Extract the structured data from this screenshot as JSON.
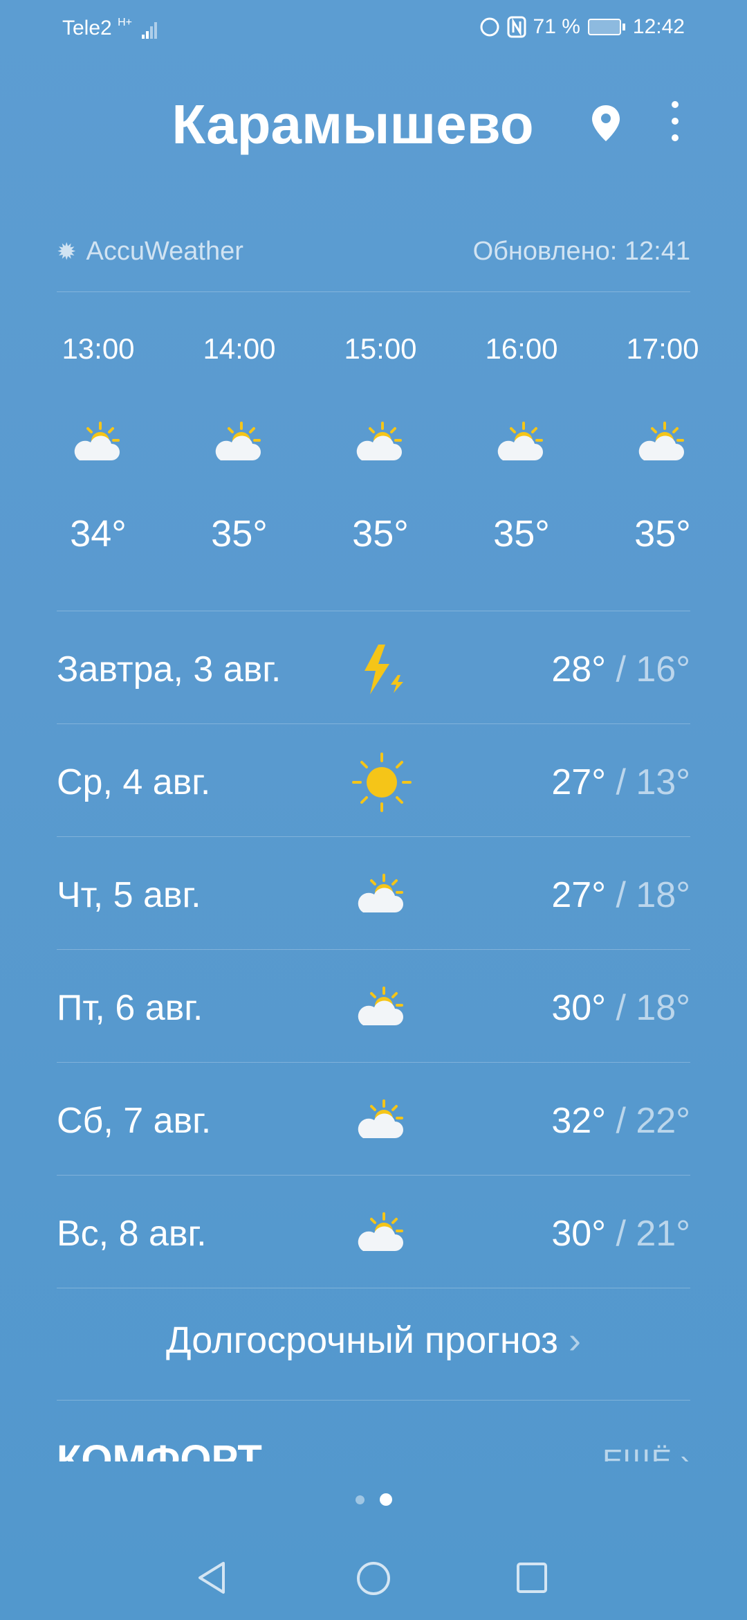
{
  "status": {
    "carrier": "Tele2",
    "network": "H+",
    "battery": "71 %",
    "time": "12:42"
  },
  "header": {
    "city": "Карамышево"
  },
  "source": {
    "provider": "AccuWeather",
    "updated": "Обновлено: 12:41"
  },
  "hourly": [
    {
      "time": "13:00",
      "icon": "partly-sunny",
      "temp": "34°"
    },
    {
      "time": "14:00",
      "icon": "partly-sunny",
      "temp": "35°"
    },
    {
      "time": "15:00",
      "icon": "partly-sunny",
      "temp": "35°"
    },
    {
      "time": "16:00",
      "icon": "partly-sunny",
      "temp": "35°"
    },
    {
      "time": "17:00",
      "icon": "partly-sunny",
      "temp": "35°"
    }
  ],
  "daily": [
    {
      "day": "Завтра, 3 авг.",
      "icon": "thunder",
      "high": "28°",
      "low": "/ 16°"
    },
    {
      "day": "Ср, 4 авг.",
      "icon": "sunny",
      "high": "27°",
      "low": "/ 13°"
    },
    {
      "day": "Чт, 5 авг.",
      "icon": "partly-sunny",
      "high": "27°",
      "low": "/ 18°"
    },
    {
      "day": "Пт, 6 авг.",
      "icon": "partly-sunny",
      "high": "30°",
      "low": "/ 18°"
    },
    {
      "day": "Сб, 7 авг.",
      "icon": "partly-sunny",
      "high": "32°",
      "low": "/ 22°"
    },
    {
      "day": "Вс, 8 авг.",
      "icon": "partly-sunny",
      "high": "30°",
      "low": "/ 21°"
    }
  ],
  "long_forecast": "Долгосрочный прогноз",
  "comfort": {
    "title": "КОМФОРТ",
    "more": "ЕЩЁ"
  },
  "pager": {
    "pages": 2,
    "active": 2
  }
}
